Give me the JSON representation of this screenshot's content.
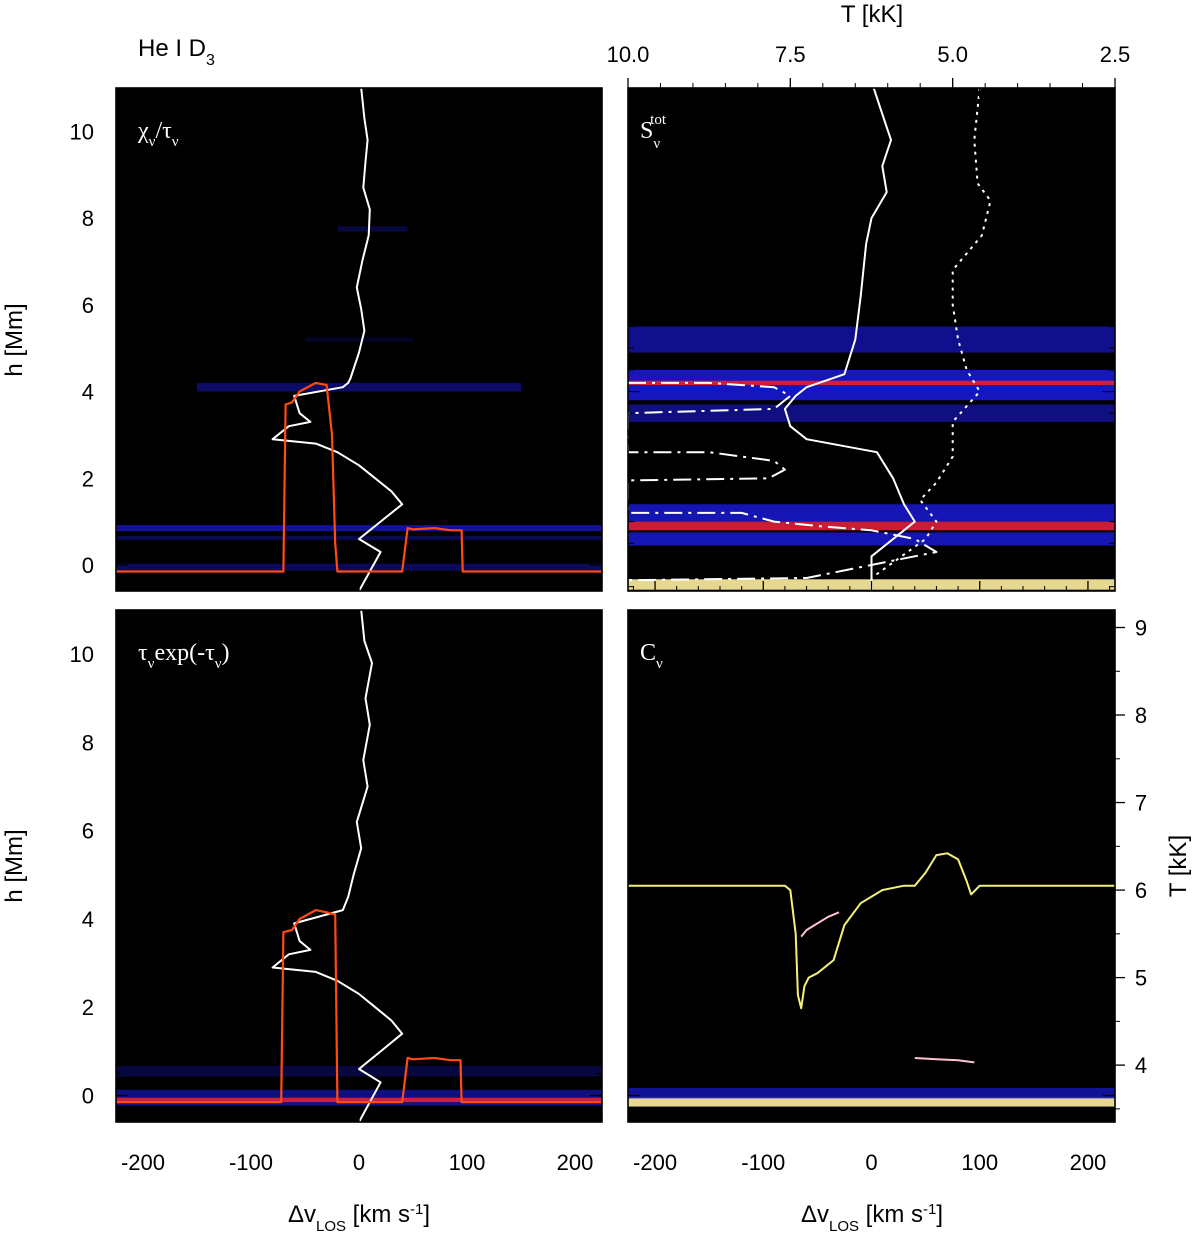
{
  "chart_data": {
    "type": "heatmap",
    "title": "He I D3",
    "title_main": "He I D",
    "title_sub": "3",
    "top_axis": {
      "label": "T [kK]",
      "ticks": [
        "10.0",
        "7.5",
        "5.0",
        "2.5"
      ],
      "tick_values": [
        10.0,
        7.5,
        5.0,
        2.5
      ],
      "range": [
        10.0,
        2.5
      ]
    },
    "right_axis": {
      "label": "T [kK]",
      "ticks": [
        "4",
        "5",
        "6",
        "7",
        "8",
        "9"
      ],
      "tick_values": [
        4,
        5,
        6,
        7,
        8,
        9
      ],
      "range": [
        3.35,
        9.2
      ]
    },
    "x_axis": {
      "label": "Δv",
      "label_sub": "LOS",
      "label_unit": " [km s",
      "label_exp": "-1",
      "label_close": "]",
      "ticks": [
        "-200",
        "-100",
        "0",
        "100",
        "200"
      ],
      "tick_values": [
        -200,
        -100,
        0,
        100,
        200
      ],
      "range": [
        -225,
        225
      ]
    },
    "y_axis": {
      "label": "h [Mm]",
      "ticks": [
        "0",
        "2",
        "4",
        "6",
        "8",
        "10"
      ],
      "tick_values": [
        0,
        2,
        4,
        6,
        8,
        10
      ],
      "range": [
        -0.6,
        11.0
      ]
    },
    "colors": {
      "white_line": "#ffffff",
      "red_line": "#ff4a10",
      "yellow_line": "#f5f07a",
      "band_blue": "#1c1cff",
      "band_red": "#e0203a",
      "band_yellow": "#fff0a0"
    },
    "panels": [
      {
        "id": "chi_over_tau",
        "label_text": "χ",
        "label_sub": "ν",
        "label_mid": "/τ",
        "label_sub2": "ν",
        "label_tail": "",
        "bands": [
          {
            "h": 0.85,
            "half": 0.07,
            "intensity": 0.6,
            "color": "blue"
          },
          {
            "h": 0.62,
            "half": 0.05,
            "intensity": 0.3,
            "color": "blue"
          },
          {
            "h": -0.05,
            "half": 0.08,
            "intensity": 0.35,
            "color": "blue"
          },
          {
            "h": 7.75,
            "half": 0.06,
            "intensity": 0.25,
            "color": "blue",
            "x0": -20,
            "x1": 45
          },
          {
            "h": 5.2,
            "half": 0.05,
            "intensity": 0.15,
            "color": "blue",
            "x0": -50,
            "x1": 50
          },
          {
            "h": 4.1,
            "half": 0.1,
            "intensity": 0.4,
            "color": "blue",
            "x0": -150,
            "x1": 150
          }
        ],
        "lines": [
          {
            "name": "velocity",
            "style": "solid",
            "color": "white",
            "v": [
              2,
              5,
              8,
              6,
              4,
              10,
              9,
              3,
              -2,
              2,
              5,
              0,
              -4,
              -8,
              -10,
              -15,
              -60,
              -55,
              -45,
              -65,
              -80,
              -40,
              -20,
              0,
              15,
              30,
              40,
              20,
              0,
              20,
              0
            ],
            "h": [
              11.0,
              10.3,
              9.8,
              9.3,
              8.7,
              8.2,
              7.6,
              7.0,
              6.4,
              5.9,
              5.4,
              4.9,
              4.6,
              4.3,
              4.2,
              4.1,
              3.9,
              3.5,
              3.3,
              3.2,
              2.9,
              2.8,
              2.6,
              2.3,
              2.0,
              1.7,
              1.4,
              1.0,
              0.6,
              0.3,
              -0.6
            ]
          },
          {
            "name": "tau_unity",
            "style": "solid",
            "color": "red",
            "v": [
              -225,
              -70,
              -68,
              -62,
              -55,
              -40,
              -30,
              -25,
              -22,
              -20,
              40,
              45,
              50,
              70,
              85,
              95,
              96,
              100,
              225
            ],
            "h": [
              -0.15,
              -0.15,
              3.7,
              3.75,
              4.0,
              4.2,
              4.15,
              3.0,
              0.5,
              -0.15,
              -0.15,
              0.85,
              0.82,
              0.85,
              0.8,
              0.8,
              -0.15,
              -0.15,
              -0.15
            ]
          }
        ]
      },
      {
        "id": "source_function",
        "label_text": "S",
        "label_sub": "ν",
        "label_sup": "tot",
        "bands": [
          {
            "h": 5.2,
            "half": 0.3,
            "intensity": 0.55,
            "color": "blue"
          },
          {
            "h": 4.15,
            "half": 0.35,
            "intensity": 0.75,
            "color": "blue"
          },
          {
            "h": 4.2,
            "half": 0.05,
            "intensity": 0.95,
            "color": "red"
          },
          {
            "h": 3.5,
            "half": 0.2,
            "intensity": 0.5,
            "color": "blue"
          },
          {
            "h": 1.2,
            "half": 0.2,
            "intensity": 0.7,
            "color": "blue"
          },
          {
            "h": 0.9,
            "half": 0.1,
            "intensity": 0.9,
            "color": "red"
          },
          {
            "h": 0.6,
            "half": 0.15,
            "intensity": 0.7,
            "color": "blue"
          },
          {
            "h": -0.45,
            "half": 0.12,
            "intensity": 1.0,
            "color": "yellow"
          }
        ],
        "lines": [
          {
            "name": "velocity",
            "style": "solid",
            "color": "white",
            "v": [
              2,
              10,
              18,
              10,
              14,
              0,
              -5,
              -10,
              -15,
              -25,
              -60,
              -70,
              -80,
              -75,
              -60,
              5,
              20,
              30,
              40,
              30,
              20,
              0,
              0
            ],
            "h": [
              11.0,
              10.4,
              9.8,
              9.2,
              8.6,
              8.0,
              7.4,
              6.2,
              5.2,
              4.4,
              4.1,
              3.9,
              3.6,
              3.2,
              2.9,
              2.6,
              2.0,
              1.4,
              1.0,
              0.8,
              0.6,
              0.2,
              -0.6
            ]
          },
          {
            "name": "temperature_dotted",
            "style": "dotted",
            "color": "white",
            "v": [
              100,
              95,
              98,
              110,
              102,
              75,
              75,
              80,
              88,
              100,
              75,
              75,
              60,
              45,
              60,
              50,
              0
            ],
            "h": [
              11.0,
              9.8,
              8.8,
              8.4,
              7.6,
              6.8,
              6.0,
              5.2,
              4.5,
              4.0,
              3.3,
              2.5,
              1.9,
              1.5,
              1.0,
              0.6,
              -0.3
            ]
          },
          {
            "name": "temperature_dashdot",
            "style": "dashdot",
            "color": "white",
            "v": [
              -225,
              -150,
              -90,
              -75,
              -90,
              -225,
              -225,
              -150,
              -90,
              -80,
              -95,
              -225,
              -225,
              -120,
              -90,
              -50,
              0,
              40,
              60,
              20,
              -60,
              -225
            ],
            "h": [
              4.2,
              4.2,
              4.1,
              3.9,
              3.6,
              3.5,
              2.6,
              2.6,
              2.4,
              2.2,
              2.0,
              1.95,
              1.2,
              1.2,
              1.0,
              0.9,
              0.8,
              0.6,
              0.3,
              0.1,
              -0.3,
              -0.35
            ]
          }
        ]
      },
      {
        "id": "tau_exp_tau",
        "label_text": "τ",
        "label_sub": "ν",
        "label_mid": "exp(-τ",
        "label_sub2": "ν",
        "label_tail": ")",
        "bands": [
          {
            "h": -0.05,
            "half": 0.18,
            "intensity": 0.5,
            "color": "blue"
          },
          {
            "h": 0.55,
            "half": 0.12,
            "intensity": 0.25,
            "color": "blue"
          },
          {
            "h": -0.1,
            "half": 0.05,
            "intensity": 0.9,
            "color": "red"
          }
        ],
        "lines": [
          {
            "name": "velocity",
            "style": "solid",
            "color": "white",
            "v": [
              2,
              5,
              12,
              6,
              10,
              4,
              8,
              -2,
              2,
              -5,
              -10,
              -15,
              -60,
              -55,
              -45,
              -65,
              -80,
              -40,
              -20,
              0,
              15,
              30,
              40,
              20,
              0,
              20,
              0
            ],
            "h": [
              11.0,
              10.3,
              9.8,
              9.0,
              8.4,
              7.6,
              7.0,
              6.2,
              5.6,
              5.0,
              4.5,
              4.2,
              3.9,
              3.5,
              3.3,
              3.2,
              2.9,
              2.8,
              2.6,
              2.3,
              2.0,
              1.7,
              1.4,
              1.0,
              0.6,
              0.3,
              -0.6
            ]
          },
          {
            "name": "tau_unity",
            "style": "solid",
            "color": "red",
            "v": [
              -225,
              -72,
              -70,
              -62,
              -55,
              -40,
              -30,
              -22,
              -20,
              40,
              45,
              50,
              70,
              85,
              94,
              95,
              225
            ],
            "h": [
              -0.15,
              -0.15,
              3.7,
              3.75,
              4.0,
              4.2,
              4.15,
              4.1,
              -0.15,
              -0.15,
              0.85,
              0.82,
              0.85,
              0.8,
              0.8,
              -0.15,
              -0.15
            ]
          }
        ]
      },
      {
        "id": "contribution_function",
        "label_text": "C",
        "label_sub": "ν",
        "bands": [
          {
            "h": -0.15,
            "half": 0.1,
            "intensity": 1.0,
            "color": "yellow"
          },
          {
            "h": 0.05,
            "half": 0.12,
            "intensity": 0.6,
            "color": "blue"
          }
        ],
        "lines": [
          {
            "name": "temperature",
            "style": "solid",
            "color": "yellow",
            "axis": "right",
            "v": [
              -225,
              -80,
              -75,
              -70,
              -68,
              -65,
              -62,
              -58,
              -50,
              -35,
              -25,
              -10,
              10,
              30,
              40,
              50,
              60,
              70,
              80,
              88,
              92,
              96,
              100,
              225
            ],
            "T": [
              6.05,
              6.05,
              6.0,
              5.5,
              4.8,
              4.65,
              4.9,
              5.0,
              5.05,
              5.2,
              5.6,
              5.85,
              6.0,
              6.05,
              6.05,
              6.2,
              6.4,
              6.42,
              6.35,
              6.1,
              5.95,
              6.0,
              6.05,
              6.05
            ]
          },
          {
            "name": "contrib_feature_upper",
            "style": "solid",
            "color": "pink",
            "v": [
              -65,
              -60,
              -50,
              -40,
              -30
            ],
            "h": [
              3.6,
              3.75,
              3.9,
              4.05,
              4.15
            ]
          },
          {
            "name": "contrib_feature_lower",
            "style": "solid",
            "color": "pink",
            "v": [
              40,
              60,
              80,
              95
            ],
            "h": [
              0.85,
              0.82,
              0.8,
              0.75
            ]
          }
        ]
      }
    ]
  }
}
